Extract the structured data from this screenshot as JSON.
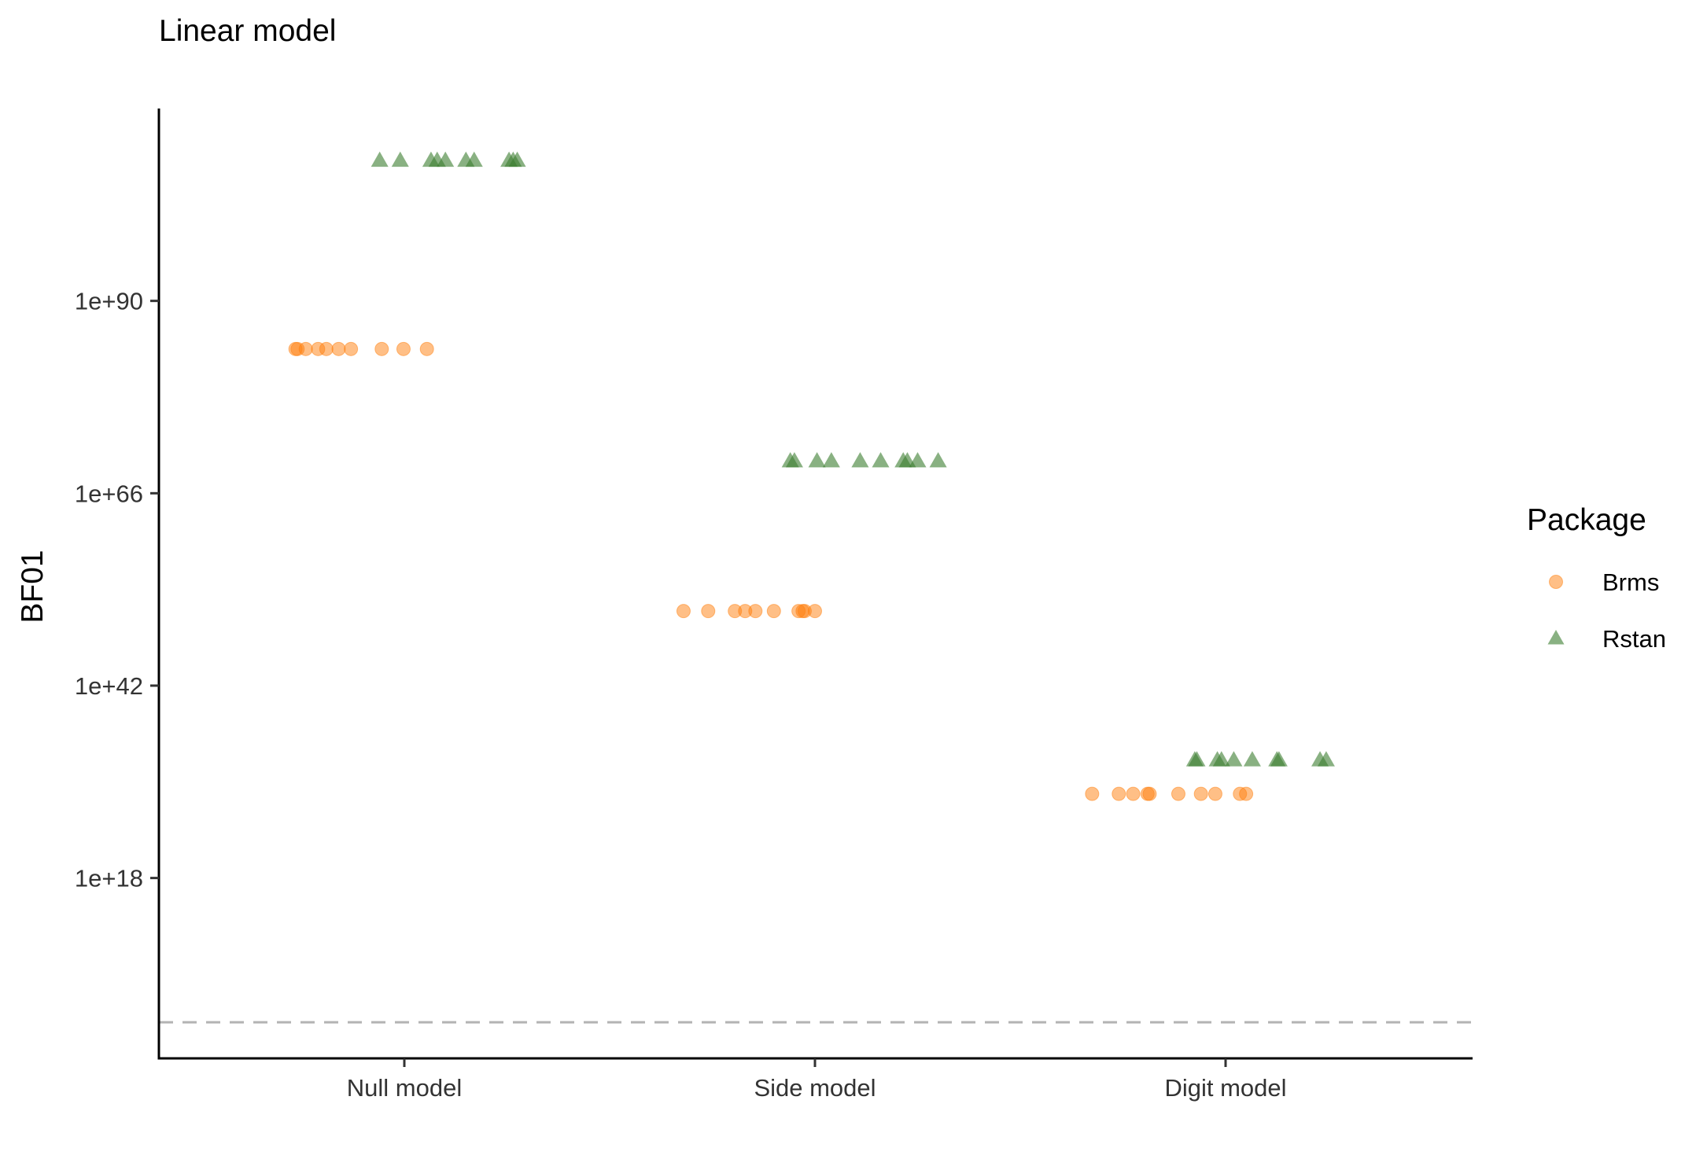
{
  "chart_data": {
    "type": "scatter",
    "title": "Linear model",
    "xlabel": "",
    "ylabel": "BF01",
    "y_scale": "log10",
    "ylim_log10": [
      -4.5,
      114
    ],
    "categories": [
      "Null model",
      "Side model",
      "Digit model"
    ],
    "y_ticks": [
      {
        "label": "1e+18",
        "log10": 18
      },
      {
        "label": "1e+42",
        "log10": 42
      },
      {
        "label": "1e+66",
        "log10": 66
      },
      {
        "label": "1e+90",
        "log10": 90
      }
    ],
    "reference_line": {
      "log10": 0,
      "style": "dashed",
      "color": "#b3b3b3"
    },
    "legend": {
      "title": "Package",
      "placement": "right"
    },
    "grid": false,
    "series": [
      {
        "name": "Brms",
        "shape": "circle",
        "color": "#ff7f0e",
        "points": [
          {
            "category": "Null model",
            "jitter": -0.265,
            "log10": 84
          },
          {
            "category": "Null model",
            "jitter": -0.26,
            "log10": 84
          },
          {
            "category": "Null model",
            "jitter": -0.24,
            "log10": 84
          },
          {
            "category": "Null model",
            "jitter": -0.21,
            "log10": 84
          },
          {
            "category": "Null model",
            "jitter": -0.19,
            "log10": 84
          },
          {
            "category": "Null model",
            "jitter": -0.16,
            "log10": 84
          },
          {
            "category": "Null model",
            "jitter": -0.13,
            "log10": 84
          },
          {
            "category": "Null model",
            "jitter": -0.055,
            "log10": 84
          },
          {
            "category": "Null model",
            "jitter": -0.002,
            "log10": 84
          },
          {
            "category": "Null model",
            "jitter": 0.055,
            "log10": 84
          },
          {
            "category": "Side model",
            "jitter": -0.32,
            "log10": 51.3
          },
          {
            "category": "Side model",
            "jitter": -0.26,
            "log10": 51.3
          },
          {
            "category": "Side model",
            "jitter": -0.195,
            "log10": 51.3
          },
          {
            "category": "Side model",
            "jitter": -0.17,
            "log10": 51.3
          },
          {
            "category": "Side model",
            "jitter": -0.145,
            "log10": 51.3
          },
          {
            "category": "Side model",
            "jitter": -0.1,
            "log10": 51.3
          },
          {
            "category": "Side model",
            "jitter": -0.04,
            "log10": 51.3
          },
          {
            "category": "Side model",
            "jitter": -0.03,
            "log10": 51.3
          },
          {
            "category": "Side model",
            "jitter": -0.025,
            "log10": 51.3
          },
          {
            "category": "Side model",
            "jitter": 0.0,
            "log10": 51.3
          },
          {
            "category": "Digit model",
            "jitter": -0.325,
            "log10": 28.5
          },
          {
            "category": "Digit model",
            "jitter": -0.26,
            "log10": 28.5
          },
          {
            "category": "Digit model",
            "jitter": -0.225,
            "log10": 28.5
          },
          {
            "category": "Digit model",
            "jitter": -0.19,
            "log10": 28.5
          },
          {
            "category": "Digit model",
            "jitter": -0.185,
            "log10": 28.5
          },
          {
            "category": "Digit model",
            "jitter": -0.115,
            "log10": 28.5
          },
          {
            "category": "Digit model",
            "jitter": -0.06,
            "log10": 28.5
          },
          {
            "category": "Digit model",
            "jitter": -0.025,
            "log10": 28.5
          },
          {
            "category": "Digit model",
            "jitter": 0.035,
            "log10": 28.5
          },
          {
            "category": "Digit model",
            "jitter": 0.05,
            "log10": 28.5
          }
        ]
      },
      {
        "name": "Rstan",
        "shape": "triangle",
        "color": "#3a7d2f",
        "points": [
          {
            "category": "Null model",
            "jitter": -0.06,
            "log10": 107.5
          },
          {
            "category": "Null model",
            "jitter": -0.01,
            "log10": 107.5
          },
          {
            "category": "Null model",
            "jitter": 0.065,
            "log10": 107.5
          },
          {
            "category": "Null model",
            "jitter": 0.08,
            "log10": 107.5
          },
          {
            "category": "Null model",
            "jitter": 0.1,
            "log10": 107.5
          },
          {
            "category": "Null model",
            "jitter": 0.15,
            "log10": 107.5
          },
          {
            "category": "Null model",
            "jitter": 0.17,
            "log10": 107.5
          },
          {
            "category": "Null model",
            "jitter": 0.255,
            "log10": 107.5
          },
          {
            "category": "Null model",
            "jitter": 0.265,
            "log10": 107.5
          },
          {
            "category": "Null model",
            "jitter": 0.275,
            "log10": 107.5
          },
          {
            "category": "Side model",
            "jitter": -0.06,
            "log10": 70
          },
          {
            "category": "Side model",
            "jitter": -0.05,
            "log10": 70
          },
          {
            "category": "Side model",
            "jitter": 0.005,
            "log10": 70
          },
          {
            "category": "Side model",
            "jitter": 0.04,
            "log10": 70
          },
          {
            "category": "Side model",
            "jitter": 0.11,
            "log10": 70
          },
          {
            "category": "Side model",
            "jitter": 0.16,
            "log10": 70
          },
          {
            "category": "Side model",
            "jitter": 0.215,
            "log10": 70
          },
          {
            "category": "Side model",
            "jitter": 0.225,
            "log10": 70
          },
          {
            "category": "Side model",
            "jitter": 0.25,
            "log10": 70
          },
          {
            "category": "Side model",
            "jitter": 0.3,
            "log10": 70
          },
          {
            "category": "Digit model",
            "jitter": -0.075,
            "log10": 32.7
          },
          {
            "category": "Digit model",
            "jitter": -0.07,
            "log10": 32.7
          },
          {
            "category": "Digit model",
            "jitter": -0.02,
            "log10": 32.7
          },
          {
            "category": "Digit model",
            "jitter": -0.01,
            "log10": 32.7
          },
          {
            "category": "Digit model",
            "jitter": 0.02,
            "log10": 32.7
          },
          {
            "category": "Digit model",
            "jitter": 0.065,
            "log10": 32.7
          },
          {
            "category": "Digit model",
            "jitter": 0.125,
            "log10": 32.7
          },
          {
            "category": "Digit model",
            "jitter": 0.13,
            "log10": 32.7
          },
          {
            "category": "Digit model",
            "jitter": 0.23,
            "log10": 32.7
          },
          {
            "category": "Digit model",
            "jitter": 0.245,
            "log10": 32.7
          }
        ]
      }
    ]
  }
}
